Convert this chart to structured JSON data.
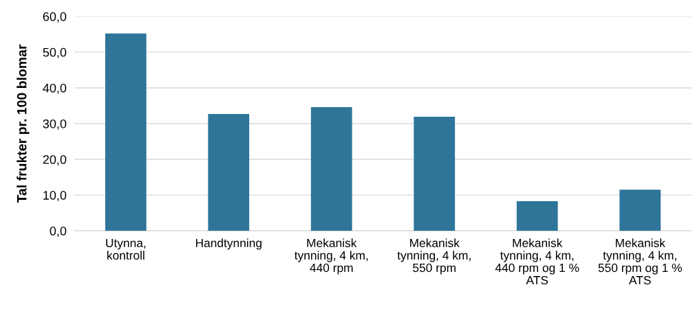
{
  "chart_data": {
    "type": "bar",
    "ylabel": "Tal frukter pr. 100 blomar",
    "categories": [
      "Utynna,\nkontroll",
      "Handtynning",
      "Mekanisk\ntynning, 4 km,\n440 rpm",
      "Mekanisk\ntynning, 4 km,\n550 rpm",
      "Mekanisk\ntynning, 4 km,\n440 rpm og 1 %\nATS",
      "Mekanisk\ntynning, 4 km,\n550 rpm og 1 %\nATS"
    ],
    "values": [
      55.2,
      32.7,
      34.6,
      31.9,
      8.3,
      11.5
    ],
    "color": "#2e7599",
    "ylim": [
      0,
      60
    ],
    "yticks": [
      {
        "value": 0,
        "label": "0,0"
      },
      {
        "value": 10,
        "label": "10,0"
      },
      {
        "value": 20,
        "label": "20,0"
      },
      {
        "value": 30,
        "label": "30,0"
      },
      {
        "value": 40,
        "label": "40,0"
      },
      {
        "value": 50,
        "label": "50,0"
      },
      {
        "value": 60,
        "label": "60,0"
      }
    ],
    "grid": "y",
    "legend": false
  }
}
